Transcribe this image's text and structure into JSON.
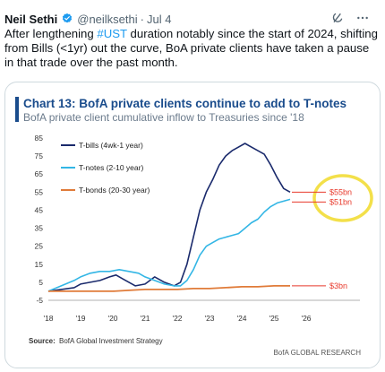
{
  "tweet": {
    "author": "Neil Sethi",
    "handle": "@neilksethi",
    "separator": "·",
    "date": "Jul 4",
    "text_before": "After lengthening ",
    "hashtag": "#UST",
    "text_after": " duration notably since the start of 2024, shifting from Bills (<1yr) out the curve, BoA private clients have taken a pause in that trade over the past month."
  },
  "icons": {
    "verified": "verified-badge-icon",
    "grok": "grok-icon",
    "more": "more-icon"
  },
  "colors": {
    "verified": "#1d9bf0",
    "tbills": "#1a2a6c",
    "tnotes": "#33b6e5",
    "tbonds": "#e07b39",
    "callout": "#e8392b",
    "highlight": "#f3e04a",
    "title_bar": "#1a4c8c"
  },
  "chart_data": {
    "type": "line",
    "title": "Chart 13: BofA private clients continue to add to T-notes",
    "subtitle": "BofA private client cumulative inflow to Treasuries since '18",
    "xlabel": "",
    "ylabel": "",
    "x_ticks": [
      "'18",
      "'19",
      "'20",
      "'21",
      "'22",
      "'23",
      "'24",
      "'25",
      "'26"
    ],
    "y_ticks": [
      85,
      75,
      65,
      55,
      45,
      35,
      25,
      15,
      5,
      -5
    ],
    "xlim": [
      2018,
      2026
    ],
    "ylim": [
      -5,
      85
    ],
    "legend_position": "top-left",
    "series": [
      {
        "name": "T-bills (4wk-1 year)",
        "x": [
          2018.0,
          2018.4,
          2018.8,
          2019.0,
          2019.3,
          2019.6,
          2019.9,
          2020.1,
          2020.3,
          2020.5,
          2020.7,
          2021.0,
          2021.3,
          2021.6,
          2021.9,
          2022.1,
          2022.3,
          2022.5,
          2022.7,
          2022.9,
          2023.1,
          2023.3,
          2023.5,
          2023.7,
          2023.9,
          2024.1,
          2024.3,
          2024.5,
          2024.7,
          2024.9,
          2025.1,
          2025.3,
          2025.5
        ],
        "values": [
          0,
          1,
          2,
          4,
          5,
          6,
          8,
          9,
          7,
          5,
          3,
          4,
          8,
          5,
          3,
          5,
          15,
          30,
          45,
          55,
          62,
          70,
          75,
          78,
          80,
          82,
          80,
          78,
          76,
          70,
          63,
          57,
          55
        ]
      },
      {
        "name": "T-notes (2-10 year)",
        "x": [
          2018.0,
          2018.4,
          2018.8,
          2019.0,
          2019.3,
          2019.6,
          2019.9,
          2020.2,
          2020.5,
          2020.8,
          2021.0,
          2021.3,
          2021.6,
          2021.9,
          2022.1,
          2022.3,
          2022.5,
          2022.7,
          2022.9,
          2023.1,
          2023.3,
          2023.5,
          2023.7,
          2023.9,
          2024.1,
          2024.3,
          2024.5,
          2024.7,
          2024.9,
          2025.1,
          2025.3,
          2025.5
        ],
        "values": [
          0,
          3,
          6,
          8,
          10,
          11,
          11,
          12,
          11,
          10,
          8,
          6,
          4,
          3,
          3,
          6,
          12,
          20,
          25,
          27,
          29,
          30,
          31,
          32,
          35,
          38,
          40,
          44,
          47,
          49,
          50,
          51
        ]
      },
      {
        "name": "T-bonds (20-30 year)",
        "x": [
          2018.0,
          2018.5,
          2019.0,
          2019.5,
          2020.0,
          2020.5,
          2021.0,
          2021.5,
          2022.0,
          2022.5,
          2023.0,
          2023.5,
          2024.0,
          2024.5,
          2025.0,
          2025.5
        ],
        "values": [
          0,
          0,
          0,
          0,
          0,
          0.5,
          1,
          1,
          1,
          1.5,
          1.5,
          2,
          2.5,
          2.5,
          3,
          3
        ]
      }
    ],
    "annotations": [
      "$55bn",
      "$51bn",
      "$3bn"
    ],
    "source_label": "Source:",
    "source_text": "BofA Global Investment Strategy",
    "footer": "BofA GLOBAL RESEARCH"
  }
}
